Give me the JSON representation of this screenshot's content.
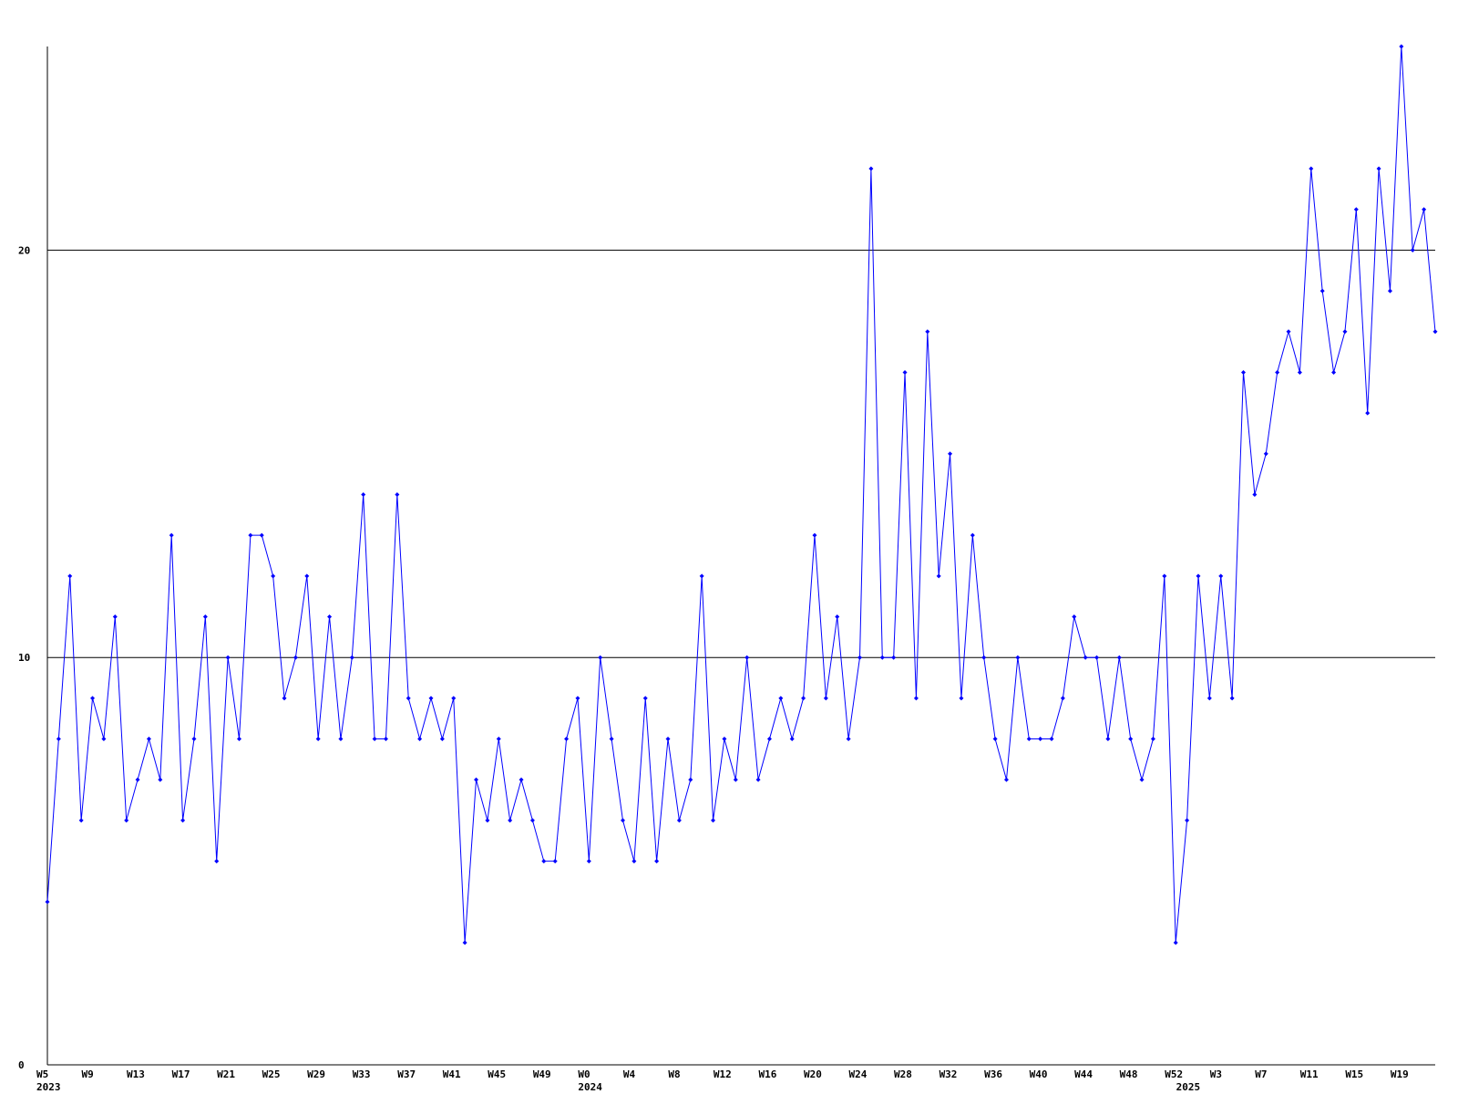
{
  "chart_data": {
    "type": "line",
    "categories": [
      "W5",
      null,
      null,
      null,
      "W9",
      null,
      null,
      null,
      "W13",
      null,
      null,
      null,
      "W17",
      null,
      null,
      null,
      "W21",
      null,
      null,
      null,
      "W25",
      null,
      null,
      null,
      "W29",
      null,
      null,
      null,
      "W33",
      null,
      null,
      null,
      "W37",
      null,
      null,
      null,
      "W41",
      null,
      null,
      null,
      "W45",
      null,
      null,
      null,
      "W49",
      null,
      null,
      null,
      "W0",
      null,
      null,
      null,
      "W4",
      null,
      null,
      null,
      "W8",
      null,
      null,
      null,
      "W12",
      null,
      null,
      null,
      "W16",
      null,
      null,
      null,
      "W20",
      null,
      null,
      null,
      "W24",
      null,
      null,
      null,
      "W28",
      null,
      null,
      null,
      "W32",
      null,
      null,
      null,
      "W36",
      null,
      null,
      null,
      "W40",
      null,
      null,
      null,
      "W44",
      null,
      null,
      null,
      "W48",
      null,
      null,
      null,
      "W52",
      null,
      null,
      null,
      "W3",
      null,
      null,
      null,
      "W7",
      null,
      null,
      null,
      "W11",
      null,
      null,
      null,
      "W15",
      null,
      null,
      null,
      "W19",
      null,
      null,
      null
    ],
    "years": [
      "2023",
      null,
      null,
      null,
      null,
      null,
      null,
      null,
      null,
      null,
      null,
      null,
      null,
      null,
      null,
      null,
      null,
      null,
      null,
      null,
      null,
      null,
      null,
      null,
      null,
      null,
      null,
      null,
      null,
      null,
      null,
      null,
      null,
      null,
      null,
      null,
      null,
      null,
      null,
      null,
      null,
      null,
      null,
      null,
      null,
      null,
      null,
      null,
      "2024",
      null,
      null,
      null,
      null,
      null,
      null,
      null,
      null,
      null,
      null,
      null,
      null,
      null,
      null,
      null,
      null,
      null,
      null,
      null,
      null,
      null,
      null,
      null,
      null,
      null,
      null,
      null,
      null,
      null,
      null,
      null,
      null,
      null,
      null,
      null,
      null,
      null,
      null,
      null,
      null,
      null,
      null,
      null,
      null,
      null,
      null,
      null,
      null,
      null,
      null,
      null,
      null,
      "2025",
      null,
      null,
      null,
      null,
      null,
      null,
      null,
      null,
      null,
      null,
      null,
      null,
      null,
      null,
      null,
      null,
      null,
      null,
      null,
      null,
      null,
      null
    ],
    "values": [
      4,
      8,
      12,
      6,
      9,
      8,
      11,
      6,
      7,
      8,
      7,
      13,
      6,
      8,
      11,
      5,
      10,
      8,
      13,
      13,
      12,
      9,
      10,
      12,
      8,
      11,
      8,
      10,
      14,
      8,
      8,
      14,
      9,
      8,
      9,
      8,
      9,
      3,
      7,
      6,
      8,
      6,
      7,
      6,
      5,
      5,
      8,
      9,
      5,
      10,
      8,
      6,
      5,
      9,
      5,
      8,
      6,
      7,
      12,
      6,
      8,
      7,
      10,
      7,
      8,
      9,
      8,
      9,
      13,
      9,
      11,
      8,
      10,
      22,
      10,
      10,
      17,
      9,
      18,
      12,
      15,
      9,
      13,
      10,
      8,
      7,
      10,
      8,
      8,
      8,
      9,
      11,
      10,
      10,
      8,
      10,
      8,
      7,
      8,
      12,
      3,
      6,
      12,
      9,
      12,
      9,
      17,
      14,
      15,
      17,
      18,
      17,
      22,
      19,
      17,
      18,
      21,
      16,
      22,
      19,
      25,
      20,
      21,
      18
    ],
    "color": "#0000ff",
    "ylim": [
      0,
      25
    ],
    "yticks": [
      0,
      10,
      20
    ],
    "grid": true
  }
}
